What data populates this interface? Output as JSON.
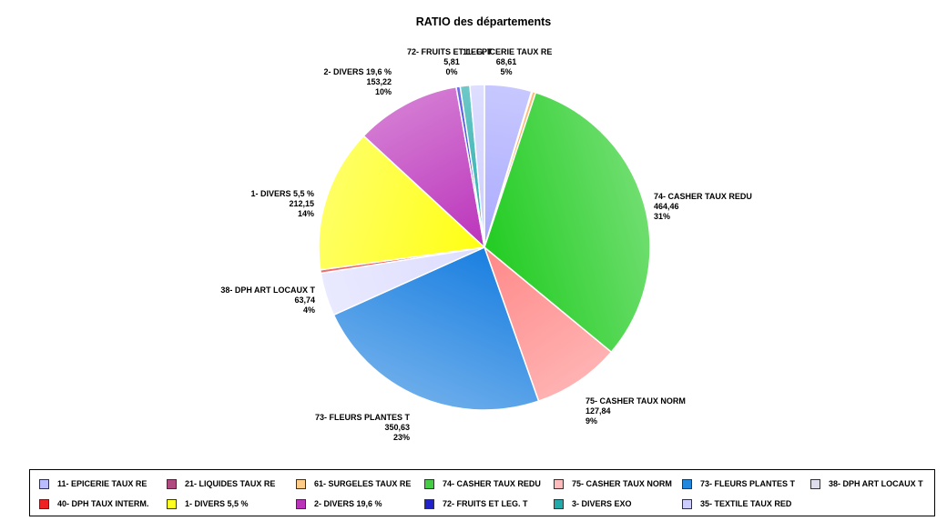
{
  "chart_data": {
    "type": "pie",
    "title": "RATIO des départements",
    "slices": [
      {
        "name": "11- EPICERIE TAUX RE",
        "value": 68.61,
        "value_label": "68,61",
        "pct_label": "5%",
        "color": "#aaaaff",
        "labeled": true
      },
      {
        "name": "21- LIQUIDES TAUX RE",
        "value": 1.2,
        "color": "#993366",
        "labeled": false
      },
      {
        "name": "61- SURGELES TAUX RE",
        "value": 5.0,
        "color": "#ff9933",
        "labeled": false
      },
      {
        "name": "74- CASHER TAUX REDU",
        "value": 464.46,
        "value_label": "464,46",
        "pct_label": "31%",
        "color": "#22cc22",
        "labeled": true
      },
      {
        "name": "75- CASHER TAUX NORM",
        "value": 127.84,
        "value_label": "127,84",
        "pct_label": "9%",
        "color": "#ff8888",
        "labeled": true
      },
      {
        "name": "73- FLEURS PLANTES T",
        "value": 350.63,
        "value_label": "350,63",
        "pct_label": "23%",
        "color": "#1a7fe0",
        "labeled": true
      },
      {
        "name": "38- DPH ART LOCAUX T",
        "value": 63.74,
        "value_label": "63,74",
        "pct_label": "4%",
        "color": "#ddddff",
        "labeled": true
      },
      {
        "name": "40- DPH TAUX INTERM.",
        "value": 5.0,
        "color": "#ee2222",
        "labeled": false
      },
      {
        "name": "1- DIVERS 5,5 %",
        "value": 212.15,
        "value_label": "212,15",
        "pct_label": "14%",
        "color": "#ffff11",
        "labeled": true
      },
      {
        "name": "2- DIVERS 19,6 %",
        "value": 153.22,
        "value_label": "153,22",
        "pct_label": "10%",
        "color": "#bb33bb",
        "labeled": true
      },
      {
        "name": "72- FRUITS ET LEG. T",
        "value": 5.81,
        "value_label": "5,81",
        "pct_label": "0%",
        "color": "#2222dd",
        "labeled": true
      },
      {
        "name": "3- DIVERS EXO",
        "value": 14.0,
        "color": "#22aaaa",
        "labeled": false
      },
      {
        "name": "35- TEXTILE TAUX RED",
        "value": 21.0,
        "color": "#ccccff",
        "labeled": false
      }
    ],
    "slice_label_texts": {
      "epicerie": "11- EPICERIE TAUX RE",
      "casher_redu": "74- CASHER TAUX REDU",
      "casher_norm": "75- CASHER TAUX NORM",
      "fleurs": "73- FLEURS PLANTES T",
      "dph_art": "38- DPH ART LOCAUX T",
      "divers55": "1- DIVERS 5,5 %",
      "divers196": "2- DIVERS 19,6 %",
      "fruits": "72- FRUITS ET LEG. T"
    },
    "legend": {
      "placement": "bottom",
      "items": [
        {
          "label": "11- EPICERIE TAUX RE",
          "color": "#bbbbff"
        },
        {
          "label": "21- LIQUIDES TAUX RE",
          "color": "#b04a80"
        },
        {
          "label": "61- SURGELES TAUX RE",
          "color": "#ffcc88"
        },
        {
          "label": "74- CASHER TAUX REDU",
          "color": "#44cc44"
        },
        {
          "label": "75- CASHER TAUX NORM",
          "color": "#ffbbbb"
        },
        {
          "label": "73- FLEURS PLANTES T",
          "color": "#2288dd"
        },
        {
          "label": "38- DPH ART LOCAUX T",
          "color": "#ddddee"
        },
        {
          "label": "40- DPH TAUX INTERM.",
          "color": "#ee2222"
        },
        {
          "label": "1- DIVERS 5,5 %",
          "color": "#ffff22"
        },
        {
          "label": "2- DIVERS 19,6 %",
          "color": "#bb33bb"
        },
        {
          "label": "72- FRUITS ET LEG. T",
          "color": "#2222cc"
        },
        {
          "label": "3- DIVERS EXO",
          "color": "#22aaaa"
        },
        {
          "label": "35- TEXTILE TAUX RED",
          "color": "#ccccff"
        }
      ]
    }
  }
}
